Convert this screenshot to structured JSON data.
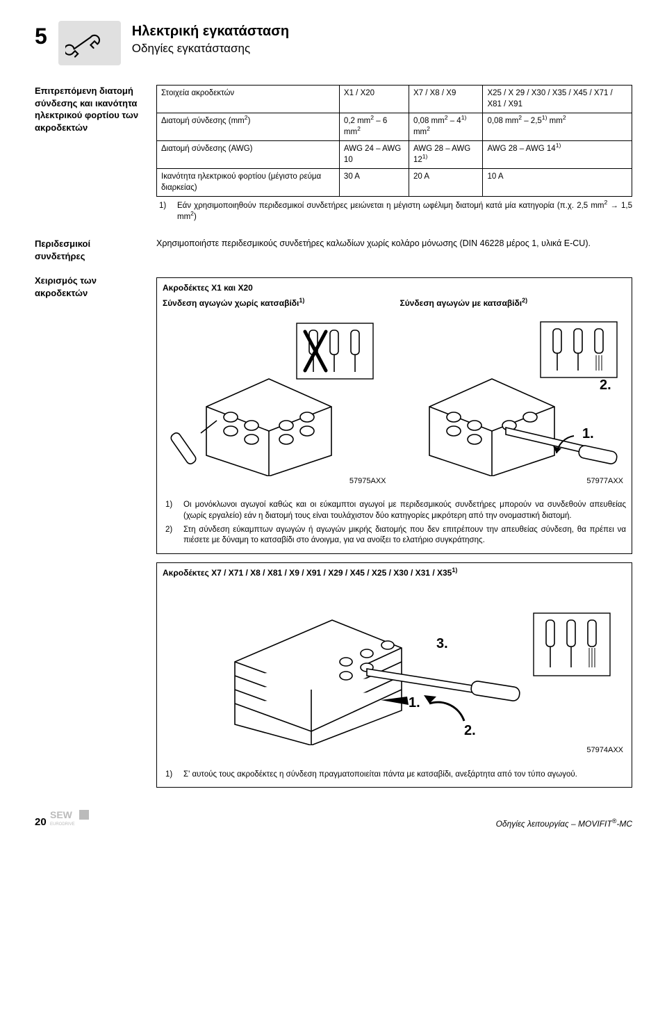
{
  "header": {
    "chapter_number": "5",
    "title": "Ηλεκτρική εγκατάσταση",
    "subtitle": "Οδηγίες εγκατάστασης"
  },
  "section_capacity": {
    "label": "Επιτρεπόμενη διατομή σύνδεσης και ικανότητα ηλεκτρικού φορτίου των ακροδεκτών",
    "table": {
      "col_headers": [
        "Στοιχεία ακροδεκτών",
        "X1 / X20",
        "X7 / X8 / X9",
        "X25 / X 29 / X30 / X35 / X45 / X71 / X81 / X91"
      ],
      "rows": [
        {
          "label_html": "Διατομή σύνδεσης (mm<sup>2</sup>)",
          "c1_html": "0,2 mm<sup>2</sup> – 6 mm<sup>2</sup>",
          "c2_html": "0,08 mm<sup>2</sup> – 4<sup>1)</sup> mm<sup>2</sup>",
          "c3_html": "0,08 mm<sup>2</sup> – 2,5<sup>1)</sup> mm<sup>2</sup>"
        },
        {
          "label_html": "Διατομή σύνδεσης (AWG)",
          "c1_html": "AWG 24 – AWG 10",
          "c2_html": "AWG 28 – AWG 12<sup>1)</sup>",
          "c3_html": "AWG 28 – AWG 14<sup>1)</sup>"
        },
        {
          "label_html": "Ικανότητα ηλεκτρικού φορτίου (μέγιστο ρεύμα διαρκείας)",
          "c1_html": "30 A",
          "c2_html": "20 A",
          "c3_html": "10 A"
        }
      ]
    },
    "footnote": {
      "marker": "1)",
      "text_html": "Εάν χρησιμοποιηθούν περιδεσμικοί συνδετήρες μειώνεται η μέγιστη ωφέλιμη διατομή κατά μία κατηγορία (π.χ. 2,5 mm<sup>2</sup> → 1,5 mm<sup>2</sup>)"
    }
  },
  "section_ferrules": {
    "label": "Περιδεσμικοί συνδετήρες",
    "text": "Χρησιμοποιήστε περιδεσμικούς συνδετήρες καλωδίων χωρίς κολάρο μόνωσης (DIN 46228 μέρος 1, υλικά E-CU)."
  },
  "section_handling": {
    "label": "Χειρισμός των ακροδεκτών",
    "box1": {
      "title": "Ακροδέκτες X1 και X20",
      "left_sub_html": "Σύνδεση αγωγών χωρίς κατσαβίδι<sup>1)</sup>",
      "right_sub_html": "Σύνδεση αγωγών με κατσαβίδι<sup>2)</sup>",
      "left_code": "57975AXX",
      "right_code": "57977AXX",
      "step1": "1.",
      "step2": "2.",
      "footnotes": [
        {
          "marker": "1)",
          "text": "Οι μονόκλωνοι αγωγοί καθώς και οι εύκαμπτοι αγωγοί με περιδεσμικούς συνδετήρες μπορούν να συνδεθούν απευθείας (χωρίς εργαλείο) εάν η διατομή τους είναι τουλάχιστον δύο κατηγορίες μικρότερη από την ονομαστική διατομή."
        },
        {
          "marker": "2)",
          "text": "Στη σύνδεση εύκαμπτων αγωγών ή αγωγών μικρής διατομής που δεν επιτρέπουν την απευθείας σύνδεση, θα πρέπει να πιέσετε με δύναμη το κατσαβίδι στο άνοιγμα, για να ανοίξει το ελατήριο συγκράτησης."
        }
      ]
    },
    "box2": {
      "title_html": "Ακροδέκτες X7 / X71 / X8 / X81 / X9 / X91 / X29 / X45 / X25 / X30 / X31 / X35<sup>1)</sup>",
      "step1": "1.",
      "step2": "2.",
      "step3": "3.",
      "code": "57974AXX",
      "footnote": {
        "marker": "1)",
        "text": "Σ' αυτούς τους ακροδέκτες η σύνδεση πραγματοποιείται πάντα με κατσαβίδι, ανεξάρτητα από τον τύπο αγωγού."
      }
    }
  },
  "footer": {
    "page": "20",
    "doc_title_html": "Οδηγίες λειτουργίας – MOVIFIT<sup>®</sup>-MC"
  }
}
